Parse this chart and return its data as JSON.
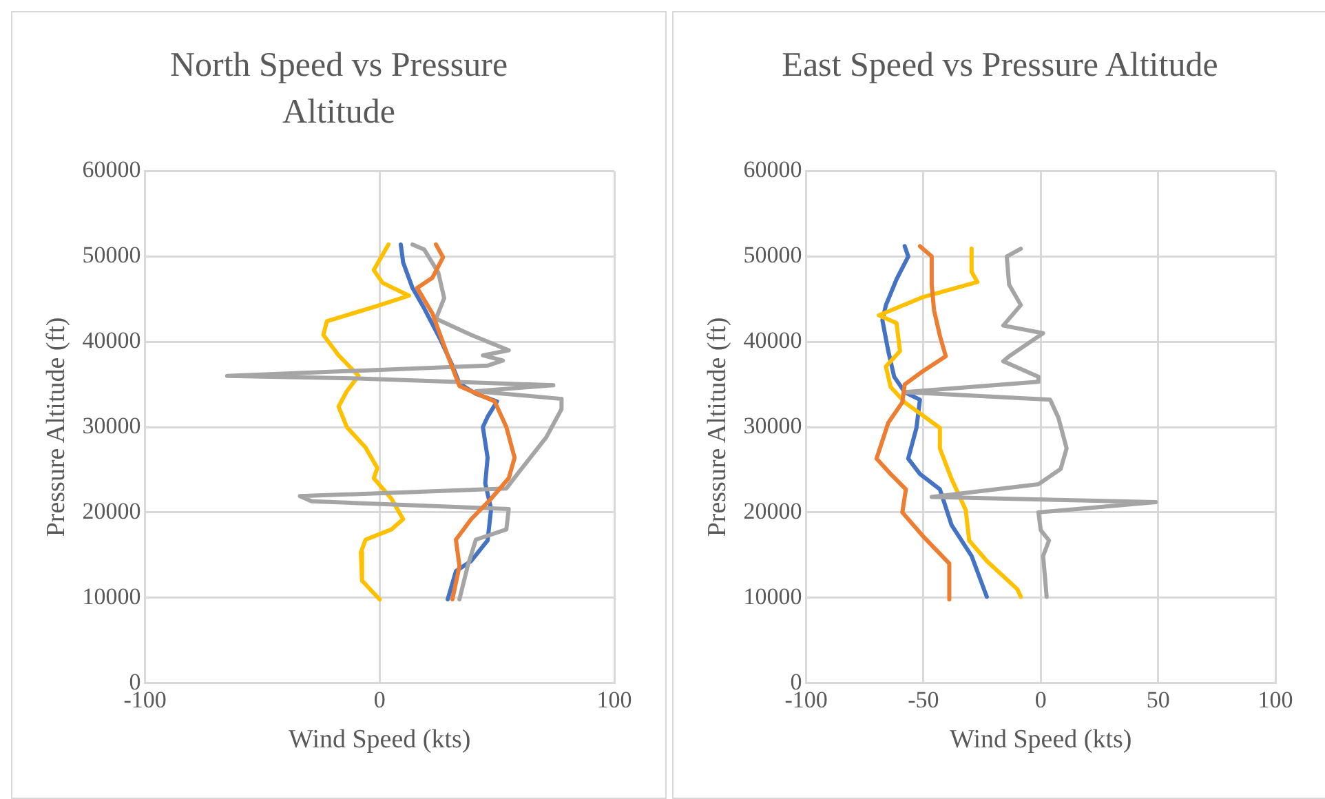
{
  "chart_data": [
    {
      "type": "line",
      "title": "North Speed vs Pressure Altitude",
      "xlabel": "Wind Speed (kts)",
      "ylabel": "Pressure Altitude (ft)",
      "xlim": [
        -100,
        100
      ],
      "xticks": [
        -100,
        0,
        100
      ],
      "ylim": [
        0,
        60000
      ],
      "yticks": [
        0,
        10000,
        20000,
        30000,
        40000,
        50000,
        60000
      ],
      "grid": true,
      "marker": "none",
      "series": [
        {
          "color": "#ed7d31",
          "x": [
            24,
            27,
            22.5,
            16,
            22.5,
            29,
            34,
            49,
            54,
            57.5,
            55,
            47.5,
            39,
            32.5,
            34,
            31
          ],
          "values": [
            51400,
            49900,
            47500,
            46300,
            43300,
            38400,
            34800,
            33000,
            30000,
            26400,
            24000,
            21600,
            19200,
            16800,
            13700,
            9800
          ]
        },
        {
          "color": "#a5a5a5",
          "x": [
            14,
            19,
            25,
            27.5,
            24,
            39,
            55,
            44,
            52.5,
            46,
            -65,
            -9,
            74,
            41,
            77.5,
            77.5,
            71,
            59,
            54,
            -34,
            -29,
            55,
            54,
            41,
            37.5,
            34
          ],
          "values": [
            51400,
            50800,
            48100,
            45100,
            42700,
            40800,
            39000,
            38400,
            37800,
            37200,
            36000,
            35700,
            34900,
            34200,
            33300,
            32100,
            28800,
            24600,
            22800,
            21900,
            21300,
            20400,
            18000,
            16800,
            13700,
            9800
          ]
        },
        {
          "color": "#ffc000",
          "x": [
            3.75,
            -2.5,
            1.25,
            12.5,
            -1,
            -22.5,
            -24,
            -17.5,
            -9,
            -14,
            -17.5,
            -14,
            -6,
            -1,
            -2.5,
            5,
            10,
            5,
            -6,
            -8,
            -7.5,
            0
          ],
          "values": [
            51400,
            48400,
            46900,
            45400,
            44200,
            42400,
            40800,
            38400,
            36000,
            34200,
            32400,
            30000,
            27600,
            25200,
            24000,
            21600,
            19200,
            18000,
            16800,
            15300,
            12000,
            9800
          ]
        },
        {
          "color": "#4472c4",
          "x": [
            9,
            10,
            14,
            19,
            26,
            31,
            34,
            41,
            50,
            46,
            44,
            46,
            45,
            47.5,
            46,
            39,
            32.5,
            29
          ],
          "values": [
            51400,
            49300,
            46300,
            43900,
            40200,
            37200,
            35100,
            33900,
            33000,
            31200,
            30000,
            26400,
            23400,
            20400,
            16700,
            14300,
            13100,
            9800
          ]
        }
      ]
    },
    {
      "type": "line",
      "title": "East Speed vs Pressure Altitude",
      "xlabel": "Wind Speed (kts)",
      "ylabel": "Pressure Altitude (ft)",
      "xlim": [
        -100,
        100
      ],
      "xticks": [
        -100,
        -50,
        0,
        50,
        100
      ],
      "ylim": [
        0,
        60000
      ],
      "yticks": [
        0,
        10000,
        20000,
        30000,
        40000,
        50000,
        60000
      ],
      "grid": true,
      "marker": "none",
      "series": [
        {
          "color": "#ed7d31",
          "x": [
            -51.5,
            -46.5,
            -46.5,
            -45.5,
            -43,
            -40.5,
            -50.5,
            -58,
            -59,
            -65,
            -70,
            -64,
            -57.5,
            -59,
            -50.5,
            -39,
            -39
          ],
          "values": [
            51200,
            50000,
            46700,
            43700,
            40700,
            38300,
            36500,
            35000,
            32900,
            30500,
            26300,
            24500,
            22700,
            20000,
            17300,
            14000,
            9800
          ]
        },
        {
          "color": "#a5a5a5",
          "x": [
            -8.5,
            -14.5,
            -13.5,
            -8.5,
            -16,
            1,
            -13.5,
            -16,
            -1,
            -1,
            -58,
            4,
            7.5,
            11,
            8.5,
            -1,
            -46.5,
            49,
            -1,
            0,
            3.5,
            1,
            2.5
          ],
          "values": [
            50900,
            50000,
            46700,
            44300,
            41900,
            41000,
            38300,
            37700,
            35900,
            35300,
            34100,
            33200,
            31100,
            27500,
            25100,
            23300,
            21800,
            21200,
            20000,
            17900,
            16700,
            14900,
            10100
          ]
        },
        {
          "color": "#ffc000",
          "x": [
            -29.5,
            -29.5,
            -27,
            -50.5,
            -69,
            -61.5,
            -60,
            -66,
            -64,
            -58,
            -50.5,
            -43,
            -43,
            -38,
            -32,
            -30.5,
            -23,
            -10,
            -8.5
          ],
          "values": [
            50900,
            48200,
            47000,
            45200,
            43100,
            42200,
            38900,
            37100,
            34700,
            32900,
            31400,
            29900,
            27500,
            23900,
            20300,
            16700,
            14300,
            11000,
            10100
          ]
        },
        {
          "color": "#4472c4",
          "x": [
            -58,
            -56.5,
            -61.5,
            -66,
            -67.5,
            -65,
            -62.5,
            -58,
            -51.5,
            -53,
            -56.5,
            -51.5,
            -43,
            -38,
            -29.5,
            -23
          ],
          "values": [
            51200,
            50000,
            47300,
            44300,
            42500,
            38900,
            35900,
            34100,
            33200,
            29900,
            26300,
            24500,
            22700,
            18500,
            14900,
            10100
          ]
        }
      ]
    }
  ]
}
